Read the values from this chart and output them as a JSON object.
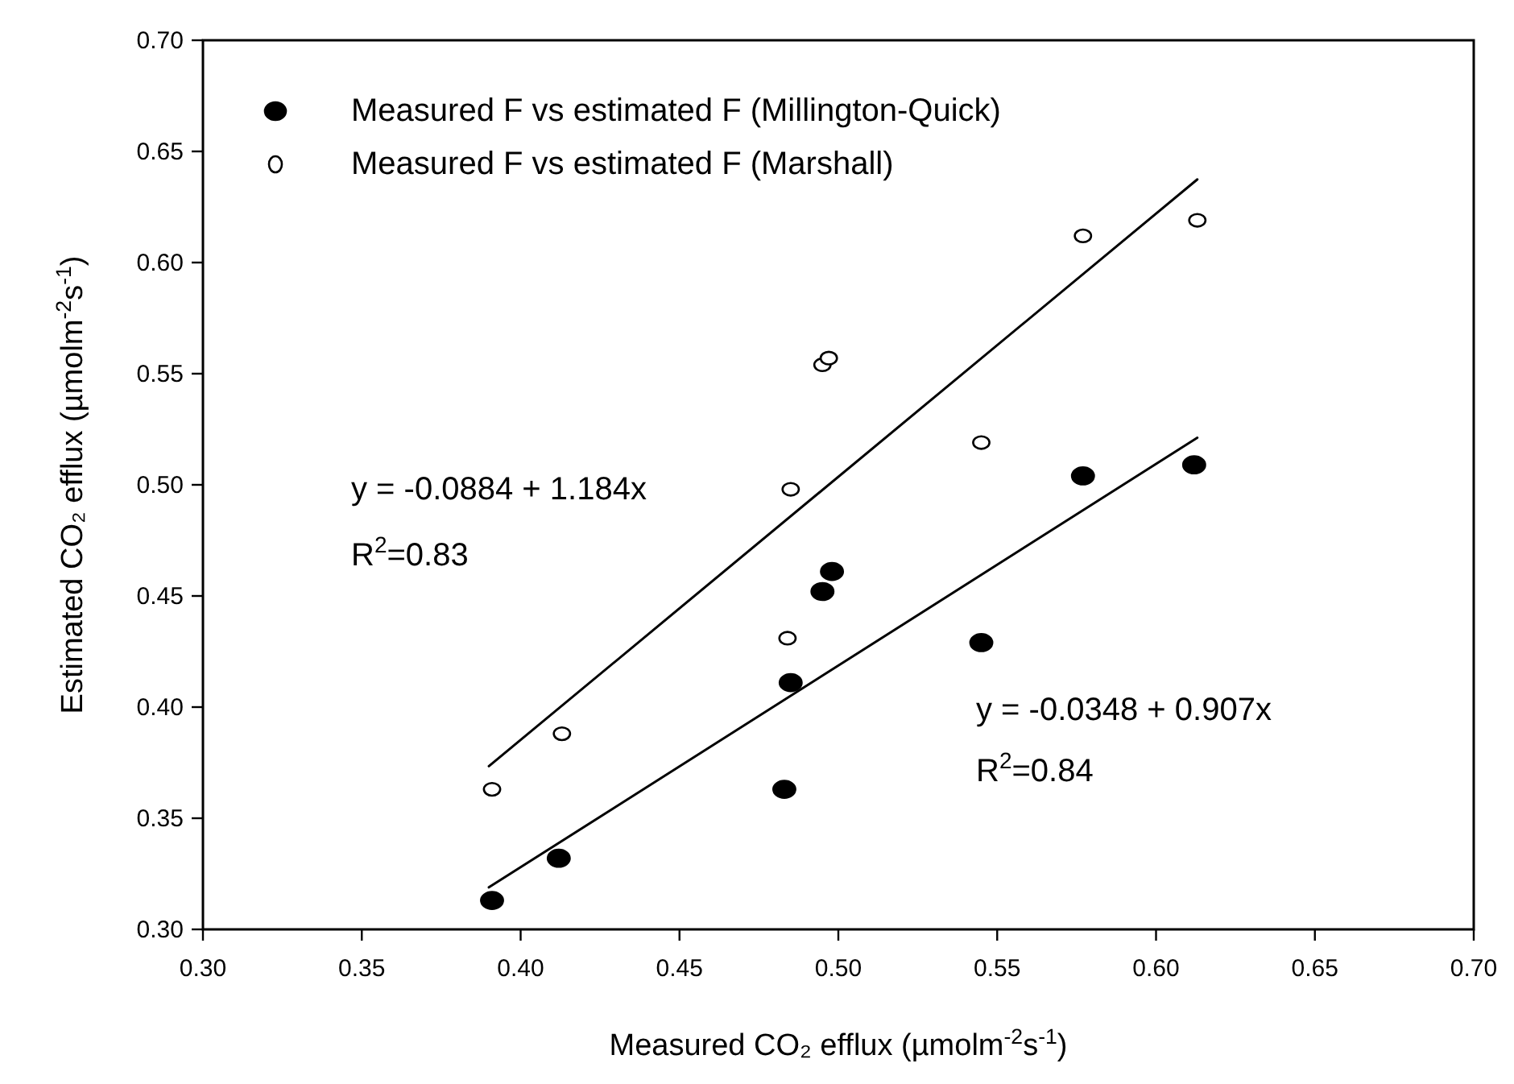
{
  "chart_data": {
    "type": "scatter",
    "xlabel": "Measured CO₂ efflux (µmolm$^{-2}$s$^{-1}$)",
    "ylabel": "Estimated CO₂ efflux (µmolm$^{-2}$s$^{-1}$)",
    "xlim": [
      0.3,
      0.7
    ],
    "ylim": [
      0.3,
      0.7
    ],
    "xticks": [
      {
        "value": 0.3,
        "label": "0.30"
      },
      {
        "value": 0.35,
        "label": "0.35"
      },
      {
        "value": 0.4,
        "label": "0.40"
      },
      {
        "value": 0.45,
        "label": "0.45"
      },
      {
        "value": 0.5,
        "label": "0.50"
      },
      {
        "value": 0.55,
        "label": "0.55"
      },
      {
        "value": 0.6,
        "label": "0.60"
      },
      {
        "value": 0.65,
        "label": "0.65"
      },
      {
        "value": 0.7,
        "label": "0.70"
      }
    ],
    "yticks": [
      {
        "value": 0.3,
        "label": "0.30"
      },
      {
        "value": 0.35,
        "label": "0.35"
      },
      {
        "value": 0.4,
        "label": "0.40"
      },
      {
        "value": 0.45,
        "label": "0.45"
      },
      {
        "value": 0.5,
        "label": "0.50"
      },
      {
        "value": 0.55,
        "label": "0.55"
      },
      {
        "value": 0.6,
        "label": "0.60"
      },
      {
        "value": 0.65,
        "label": "0.65"
      },
      {
        "value": 0.7,
        "label": "0.70"
      }
    ],
    "grid": false,
    "legend": "top left",
    "series": [
      {
        "name": "Measured F vs estimated F (Millington-Quick)",
        "marker": "circle",
        "color": "#000000",
        "x": [
          0.391,
          0.412,
          0.483,
          0.485,
          0.495,
          0.498,
          0.545,
          0.577,
          0.612
        ],
        "values": [
          0.313,
          0.332,
          0.363,
          0.411,
          0.452,
          0.461,
          0.429,
          0.504,
          0.509
        ]
      },
      {
        "name": "Measured F vs estimated F (Marshall)",
        "marker": "circle",
        "color": "#ffffff",
        "x": [
          0.391,
          0.413,
          0.484,
          0.485,
          0.495,
          0.497,
          0.545,
          0.577,
          0.613
        ],
        "values": [
          0.363,
          0.388,
          0.431,
          0.498,
          0.554,
          0.557,
          0.519,
          0.612,
          0.619
        ]
      },
      {
        "type": "line",
        "color": "#000000",
        "x": [
          0.39,
          0.613
        ],
        "values": [
          0.3734,
          0.6374
        ]
      },
      {
        "type": "line",
        "color": "#000000",
        "x": [
          0.39,
          0.613
        ],
        "values": [
          0.3189,
          0.5212
        ]
      }
    ],
    "annotations": [
      "y = -0.0884 + 1.184x",
      "R$^{2}$=0.83",
      "y = -0.0348 + 0.907x",
      "R$^{2}$=0.84"
    ]
  }
}
